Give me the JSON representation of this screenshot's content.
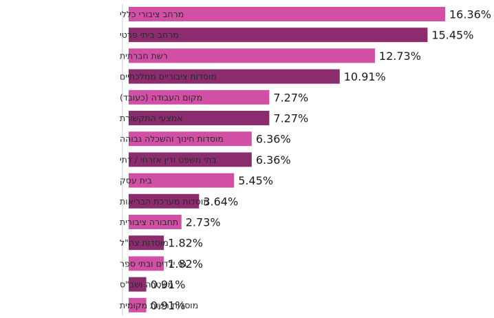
{
  "chart_data": {
    "type": "bar",
    "orientation": "horizontal",
    "categories": [
      "מרחב ציבורי כללי",
      "מרחב ביתי פרטי",
      "רשת חברתית",
      "מוסדות ציבוריים ממלכתיים",
      "מקום העבודה (כעובד)",
      "אמצעי התקשורת",
      "מוסדות חינוך והשכלה גבוהה",
      "בתי משפט ודין אזרחי / דתי",
      "בית עסק",
      "מוסדות מערכת הבריאות",
      "תחבורה ציבורית",
      "מוסדות צה\"ל",
      "גני ילדים ובתי ספר",
      "משטרה ושב\"ס",
      "מוסדות רשות מקומית"
    ],
    "values": [
      16.36,
      15.45,
      12.73,
      10.91,
      7.27,
      7.27,
      6.36,
      6.36,
      5.45,
      3.64,
      2.73,
      1.82,
      1.82,
      0.91,
      0.91
    ],
    "value_labels": [
      "16.36%",
      "15.45%",
      "12.73%",
      "10.91%",
      "7.27%",
      "7.27%",
      "6.36%",
      "6.36%",
      "5.45%",
      "3.64%",
      "2.73%",
      "1.82%",
      "1.82%",
      "0.91%",
      "0.91%"
    ],
    "title": "",
    "xlabel": "",
    "ylabel": "",
    "xlim": [
      0,
      16.36
    ],
    "grid": false,
    "legend": "none",
    "colors": [
      "#d24fa6",
      "#8a2c6e"
    ]
  }
}
